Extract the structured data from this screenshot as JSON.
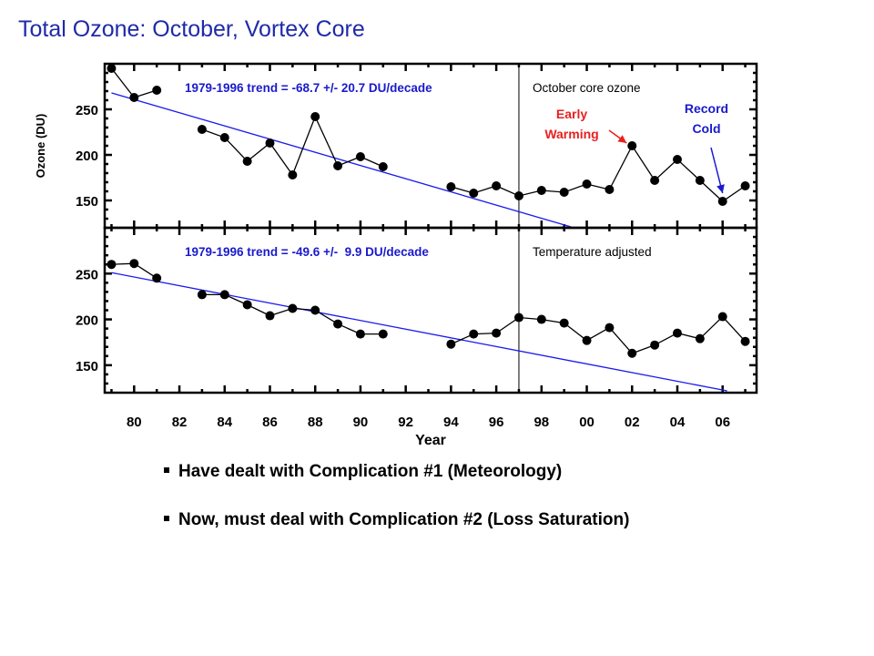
{
  "title": "Total Ozone: October, Vortex Core",
  "bullets": [
    "Have dealt with Complication #1 (Meteorology)",
    "Now, must deal with Complication #2 (Loss Saturation)"
  ],
  "colors": {
    "title": "#1f2aa8",
    "trend_text": "#1a1acc",
    "trend_line": "#1a1aee",
    "annotation_red": "#e82020",
    "annotation_blue": "#1a1acc"
  },
  "chart_data": [
    {
      "type": "line",
      "panel": "top",
      "ylabel": "Ozone (DU)",
      "ylim": [
        120,
        300
      ],
      "xlim": [
        1978.7,
        2007.5
      ],
      "yticks": [
        150,
        200,
        250
      ],
      "trend_label": "1979-1996 trend = -68.7 +/- 20.7 DU/decade",
      "panel_label": "October core ozone",
      "trend": {
        "x": [
          1979,
          1999.3
        ],
        "y": [
          268,
          121
        ]
      },
      "vertical_line_x": 1997,
      "annotations": [
        {
          "lines": [
            "Early",
            "Warming"
          ],
          "color": "red",
          "points_to": [
            2002,
            210
          ]
        },
        {
          "lines": [
            "Record",
            "Cold"
          ],
          "color": "blue",
          "points_to": [
            2006,
            150
          ]
        }
      ],
      "series": [
        {
          "segments": [
            [
              [
                1979,
                295
              ],
              [
                1980,
                263
              ],
              [
                1981,
                271
              ]
            ],
            [
              [
                1983,
                228
              ],
              [
                1984,
                219
              ],
              [
                1985,
                193
              ],
              [
                1986,
                213
              ],
              [
                1987,
                178
              ],
              [
                1988,
                242
              ],
              [
                1989,
                188
              ],
              [
                1990,
                198
              ],
              [
                1991,
                187
              ]
            ],
            [
              [
                1994,
                165
              ],
              [
                1995,
                158
              ],
              [
                1996,
                166
              ],
              [
                1997,
                155
              ],
              [
                1998,
                161
              ],
              [
                1999,
                159
              ],
              [
                2000,
                168
              ],
              [
                2001,
                162
              ],
              [
                2002,
                210
              ],
              [
                2003,
                172
              ],
              [
                2004,
                195
              ],
              [
                2005,
                172
              ],
              [
                2006,
                149
              ],
              [
                2007,
                166
              ]
            ]
          ]
        }
      ]
    },
    {
      "type": "line",
      "panel": "bottom",
      "xlabel": "Year",
      "ylim": [
        120,
        300
      ],
      "xlim": [
        1978.7,
        2007.5
      ],
      "yticks": [
        150,
        200,
        250
      ],
      "xticks": [
        "80",
        "82",
        "84",
        "86",
        "88",
        "90",
        "92",
        "94",
        "96",
        "98",
        "00",
        "02",
        "04",
        "06"
      ],
      "trend_label": "1979-1996 trend = -49.6 +/-  9.9 DU/decade",
      "panel_label": "Temperature adjusted",
      "trend": {
        "x": [
          1979,
          2006.2
        ],
        "y": [
          251,
          122
        ]
      },
      "vertical_line_x": 1997,
      "series": [
        {
          "segments": [
            [
              [
                1979,
                260
              ],
              [
                1980,
                261
              ],
              [
                1981,
                245
              ]
            ],
            [
              [
                1983,
                227
              ],
              [
                1984,
                227
              ],
              [
                1985,
                216
              ],
              [
                1986,
                204
              ],
              [
                1987,
                212
              ],
              [
                1988,
                210
              ],
              [
                1989,
                195
              ],
              [
                1990,
                184
              ],
              [
                1991,
                184
              ]
            ],
            [
              [
                1994,
                173
              ],
              [
                1995,
                184
              ],
              [
                1996,
                185
              ],
              [
                1997,
                202
              ],
              [
                1998,
                200
              ],
              [
                1999,
                196
              ],
              [
                2000,
                177
              ],
              [
                2001,
                191
              ],
              [
                2002,
                163
              ],
              [
                2003,
                172
              ],
              [
                2004,
                185
              ],
              [
                2005,
                179
              ],
              [
                2006,
                203
              ],
              [
                2007,
                176
              ]
            ]
          ]
        }
      ]
    }
  ]
}
